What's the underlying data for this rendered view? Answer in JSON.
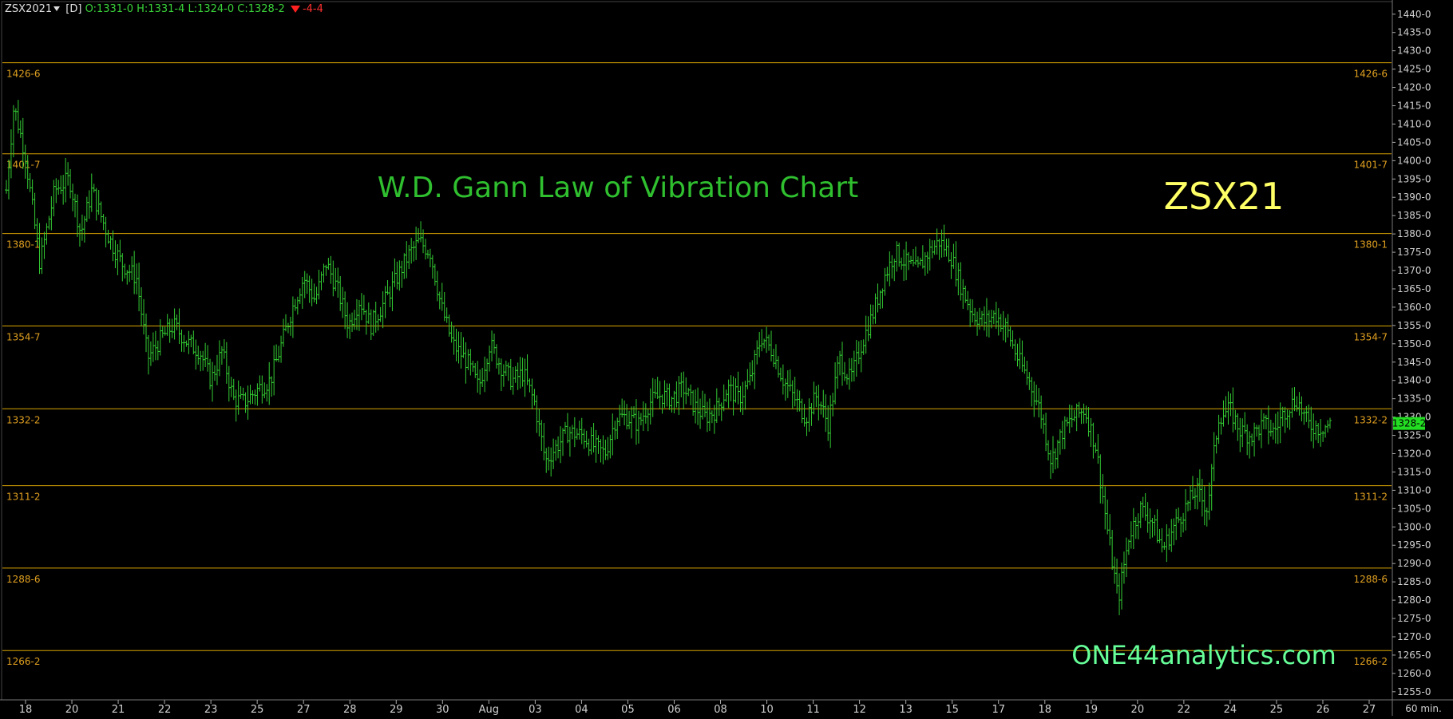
{
  "header": {
    "symbol": "ZSX2021",
    "interval": "[D]",
    "ohlc": "O:1331-0 H:1331-4 L:1324-0 C:1328-2",
    "change": "-4-4"
  },
  "colors": {
    "background": "#000000",
    "bars": "#33cc33",
    "levels": "#d9a400",
    "level_labels": "#e0a020",
    "axis_text": "#d0d0d0",
    "title": "#2fbf2f",
    "symbol_label": "#ffff66",
    "watermark": "#66ff99",
    "last_price_bg": "#22dd22"
  },
  "chart_data": {
    "type": "ohlc",
    "title": "W.D. Gann Law of Vibration Chart",
    "symbol_label": "ZSX21",
    "watermark": "ONE44analytics.com",
    "timeframe_label": "60 min.",
    "ylim": [
      1253,
      1443
    ],
    "y_ticks": [
      1440,
      1435,
      1430,
      1425,
      1420,
      1415,
      1410,
      1405,
      1400,
      1395,
      1390,
      1385,
      1380,
      1375,
      1370,
      1365,
      1360,
      1355,
      1350,
      1345,
      1340,
      1335,
      1330,
      1325,
      1320,
      1315,
      1310,
      1305,
      1300,
      1295,
      1290,
      1285,
      1280,
      1275,
      1270,
      1265,
      1260,
      1255
    ],
    "y_tick_labels": [
      "1440-0",
      "1435-0",
      "1430-0",
      "1425-0",
      "1420-0",
      "1415-0",
      "1410-0",
      "1405-0",
      "1400-0",
      "1395-0",
      "1390-0",
      "1385-0",
      "1380-0",
      "1375-0",
      "1370-0",
      "1365-0",
      "1360-0",
      "1355-0",
      "1350-0",
      "1345-0",
      "1340-0",
      "1335-0",
      "1330-0",
      "1325-0",
      "1320-0",
      "1315-0",
      "1310-0",
      "1305-0",
      "1300-0",
      "1295-0",
      "1290-0",
      "1285-0",
      "1280-0",
      "1275-0",
      "1270-0",
      "1265-0",
      "1260-0",
      "1255-0"
    ],
    "x_labels": [
      "18",
      "20",
      "21",
      "22",
      "23",
      "25",
      "27",
      "28",
      "29",
      "30",
      "Aug",
      "03",
      "04",
      "05",
      "06",
      "08",
      "10",
      "11",
      "12",
      "13",
      "15",
      "17",
      "18",
      "19",
      "20",
      "22",
      "24",
      "25",
      "26",
      "27"
    ],
    "levels": [
      {
        "label": "1426-6",
        "value": 1426.75
      },
      {
        "label": "1401-7",
        "value": 1401.875
      },
      {
        "label": "1380-1",
        "value": 1380.125
      },
      {
        "label": "1354-7",
        "value": 1354.875
      },
      {
        "label": "1332-2",
        "value": 1332.25
      },
      {
        "label": "1311-2",
        "value": 1311.25
      },
      {
        "label": "1288-6",
        "value": 1288.75
      },
      {
        "label": "1266-2",
        "value": 1266.25
      }
    ],
    "last_price": {
      "label": "1328-2",
      "value": 1328.25
    },
    "price_path": [
      [
        0,
        1392
      ],
      [
        0.02,
        1415
      ],
      [
        0.05,
        1402
      ],
      [
        0.09,
        1372
      ],
      [
        0.13,
        1392
      ],
      [
        0.17,
        1395
      ],
      [
        0.2,
        1380
      ],
      [
        0.23,
        1392
      ],
      [
        0.25,
        1386
      ],
      [
        0.28,
        1378
      ],
      [
        0.31,
        1372
      ],
      [
        0.35,
        1368
      ],
      [
        0.38,
        1346
      ],
      [
        0.42,
        1352
      ],
      [
        0.45,
        1355
      ],
      [
        0.49,
        1350
      ],
      [
        0.52,
        1348
      ],
      [
        0.55,
        1340
      ],
      [
        0.58,
        1348
      ],
      [
        0.61,
        1335
      ],
      [
        0.64,
        1334
      ],
      [
        0.68,
        1338
      ],
      [
        0.71,
        1340
      ],
      [
        0.74,
        1350
      ],
      [
        0.77,
        1360
      ],
      [
        0.8,
        1368
      ],
      [
        0.83,
        1362
      ],
      [
        0.86,
        1372
      ],
      [
        0.89,
        1365
      ],
      [
        0.92,
        1355
      ],
      [
        0.95,
        1362
      ],
      [
        0.98,
        1355
      ],
      [
        1.02,
        1362
      ],
      [
        1.05,
        1368
      ],
      [
        1.08,
        1374
      ],
      [
        1.11,
        1378
      ],
      [
        1.14,
        1375
      ],
      [
        1.17,
        1360
      ],
      [
        1.2,
        1350
      ],
      [
        1.24,
        1345
      ],
      [
        1.27,
        1338
      ],
      [
        1.3,
        1350
      ],
      [
        1.33,
        1344
      ],
      [
        1.36,
        1340
      ],
      [
        1.39,
        1342
      ],
      [
        1.42,
        1334
      ],
      [
        1.45,
        1318
      ],
      [
        1.48,
        1322
      ],
      [
        1.51,
        1326
      ],
      [
        1.55,
        1325
      ],
      [
        1.58,
        1322
      ],
      [
        1.61,
        1320
      ],
      [
        1.64,
        1330
      ],
      [
        1.67,
        1330
      ],
      [
        1.7,
        1328
      ],
      [
        1.73,
        1334
      ],
      [
        1.76,
        1336
      ],
      [
        1.79,
        1335
      ],
      [
        1.82,
        1338
      ],
      [
        1.85,
        1333
      ],
      [
        1.88,
        1330
      ],
      [
        1.91,
        1332
      ],
      [
        1.94,
        1338
      ],
      [
        1.97,
        1335
      ],
      [
        2.0,
        1340
      ],
      [
        2.03,
        1352
      ],
      [
        2.06,
        1348
      ],
      [
        2.09,
        1340
      ],
      [
        2.12,
        1335
      ],
      [
        2.15,
        1330
      ],
      [
        2.18,
        1336
      ],
      [
        2.21,
        1328
      ],
      [
        2.24,
        1346
      ],
      [
        2.27,
        1340
      ],
      [
        2.3,
        1350
      ],
      [
        2.33,
        1358
      ],
      [
        2.36,
        1368
      ],
      [
        2.39,
        1375
      ],
      [
        2.42,
        1372
      ],
      [
        2.45,
        1370
      ],
      [
        2.48,
        1375
      ],
      [
        2.51,
        1378
      ],
      [
        2.54,
        1374
      ],
      [
        2.57,
        1365
      ],
      [
        2.6,
        1358
      ],
      [
        2.63,
        1356
      ],
      [
        2.66,
        1358
      ],
      [
        2.69,
        1354
      ],
      [
        2.72,
        1346
      ],
      [
        2.75,
        1340
      ],
      [
        2.78,
        1332
      ],
      [
        2.81,
        1318
      ],
      [
        2.84,
        1326
      ],
      [
        2.87,
        1330
      ],
      [
        2.9,
        1332
      ],
      [
        2.93,
        1322
      ],
      [
        2.96,
        1300
      ],
      [
        2.99,
        1280
      ],
      [
        3.02,
        1298
      ],
      [
        3.05,
        1305
      ],
      [
        3.08,
        1302
      ],
      [
        3.11,
        1294
      ],
      [
        3.14,
        1300
      ],
      [
        3.17,
        1305
      ],
      [
        3.2,
        1310
      ],
      [
        3.23,
        1305
      ],
      [
        3.26,
        1330
      ],
      [
        3.29,
        1332
      ],
      [
        3.32,
        1326
      ],
      [
        3.35,
        1325
      ],
      [
        3.38,
        1328
      ],
      [
        3.41,
        1326
      ],
      [
        3.44,
        1332
      ],
      [
        3.47,
        1335
      ],
      [
        3.5,
        1328
      ],
      [
        3.53,
        1327
      ],
      [
        3.56,
        1328
      ]
    ]
  }
}
